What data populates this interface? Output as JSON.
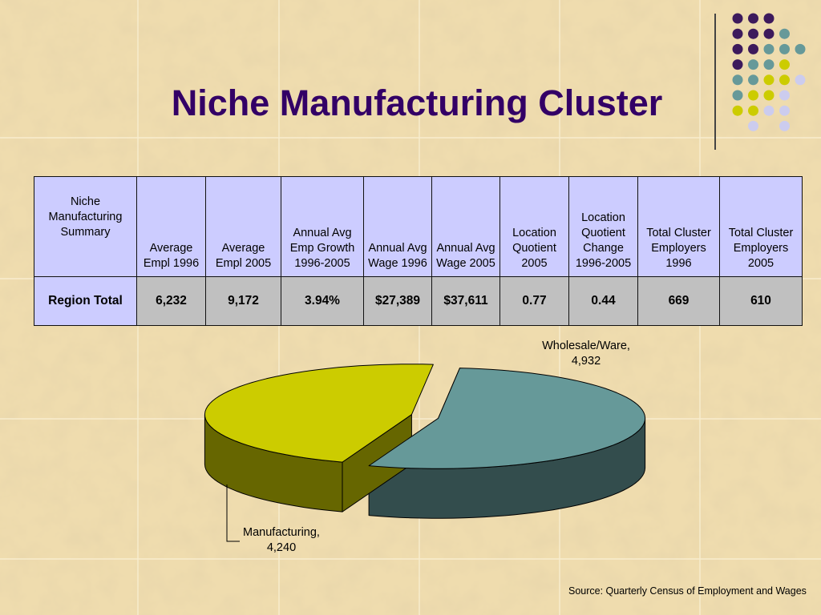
{
  "title": "Niche Manufacturing Cluster",
  "source": "Source: Quarterly Census of Employment and Wages",
  "colors": {
    "title": "#330066",
    "header_fill": "#ccccff",
    "value_fill": "#c0c0c0",
    "wholesale_top": "#669999",
    "wholesale_side": "#334d4d",
    "manufacturing_top": "#cccc00",
    "manufacturing_side": "#666600"
  },
  "table": {
    "headers": [
      "Niche Manufacturing Summary",
      "Average Empl 1996",
      "Average Empl 2005",
      "Annual Avg Emp Growth 1996-2005",
      "Annual Avg Wage 1996",
      "Annual Avg Wage 2005",
      "Location Quotient 2005",
      "Location Quotient Change 1996-2005",
      "Total Cluster Employers 1996",
      "Total Cluster Employers 2005"
    ],
    "rows": [
      [
        "Region Total",
        "6,232",
        "9,172",
        "3.94%",
        "$27,389",
        "$37,611",
        "0.77",
        "0.44",
        "669",
        "610"
      ]
    ]
  },
  "chart_data": {
    "type": "pie",
    "slices": [
      {
        "name": "Wholesale/Ware,",
        "value_label": "4,932",
        "value": 4932
      },
      {
        "name": "Manufacturing,",
        "value_label": "4,240",
        "value": 4240
      }
    ]
  }
}
